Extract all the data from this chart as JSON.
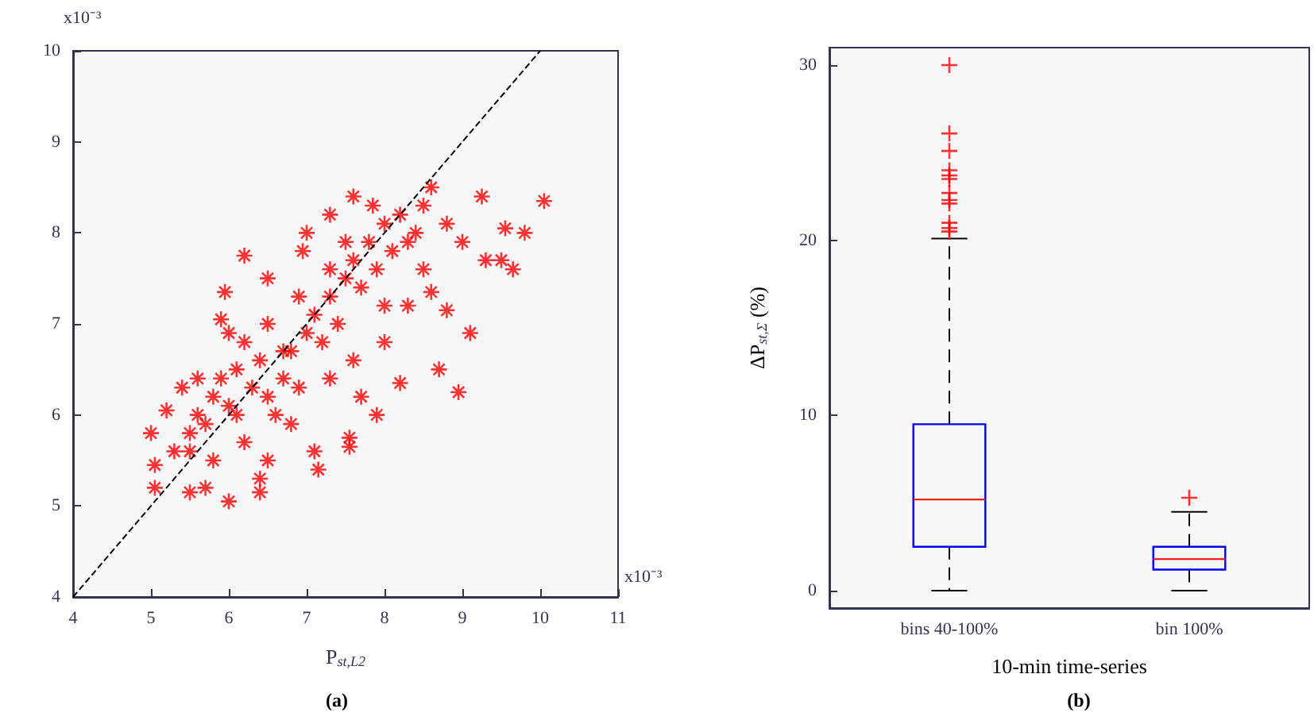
{
  "chart_data": [
    {
      "type": "scatter",
      "title": "(a)",
      "xlabel": "P$_{st,L2}$",
      "annotations": [
        "x10⁻³",
        "x10⁻³"
      ],
      "xlim": [
        4,
        11
      ],
      "xticks": [
        4,
        5,
        6,
        7,
        8,
        9,
        10,
        11
      ],
      "ylim": [
        4,
        10
      ],
      "yticks": [
        4,
        5,
        6,
        7,
        8,
        9,
        10
      ],
      "marker": "cross",
      "series": [
        {
          "color": "#ff0000",
          "x": [
            5.0,
            5.05,
            5.05,
            5.2,
            6.0,
            6.4,
            7.15,
            7.1,
            7.55,
            7.55,
            7.9,
            8.95,
            9.1,
            8.7,
            8.8,
            9.65,
            9.5,
            9.3,
            10.05,
            9.8,
            9.55,
            9.25,
            8.6,
            7.6,
            6.2,
            5.95,
            5.9,
            6.5,
            6.95,
            7.3,
            7.85,
            8.2,
            8.6,
            5.5,
            5.7,
            6.5,
            5.5,
            5.7,
            5.8,
            5.6,
            5.9,
            6.0,
            6.1,
            6.2,
            6.3,
            6.4,
            6.5,
            6.6,
            6.7,
            6.8,
            6.9,
            7.0,
            7.1,
            7.2,
            7.3,
            7.4,
            7.5,
            7.6,
            7.7,
            7.8,
            7.9,
            8.0,
            8.1,
            8.2,
            8.3,
            8.4,
            8.5,
            8.0,
            7.6,
            7.3,
            6.8,
            6.2,
            5.8,
            5.3,
            5.4,
            5.6,
            6.0,
            6.5,
            6.9,
            7.3,
            7.0,
            8.8,
            9.0,
            8.5,
            8.3,
            8.0,
            7.7,
            6.4,
            5.5,
            6.1,
            6.7,
            7.5
          ],
          "values": [
            5.8,
            5.2,
            5.45,
            6.05,
            5.05,
            5.15,
            5.4,
            5.6,
            5.65,
            5.75,
            6.0,
            6.25,
            6.9,
            6.5,
            7.15,
            7.6,
            7.7,
            7.7,
            8.35,
            8.0,
            8.05,
            8.4,
            8.5,
            8.4,
            7.75,
            7.35,
            7.05,
            7.5,
            7.8,
            8.2,
            8.3,
            6.35,
            7.35,
            5.15,
            5.2,
            5.5,
            5.6,
            5.9,
            6.2,
            6.0,
            6.4,
            6.1,
            6.5,
            6.8,
            6.3,
            6.6,
            6.2,
            6.0,
            6.4,
            6.7,
            6.3,
            6.9,
            7.1,
            6.8,
            7.3,
            7.0,
            7.5,
            7.7,
            7.4,
            7.9,
            7.6,
            8.1,
            7.8,
            8.2,
            7.9,
            8.0,
            7.6,
            7.2,
            6.6,
            6.4,
            5.9,
            5.7,
            5.5,
            5.6,
            6.3,
            6.4,
            6.9,
            7.0,
            7.3,
            7.6,
            8.0,
            8.1,
            7.9,
            8.3,
            7.2,
            6.8,
            6.2,
            5.3,
            5.8,
            6.0,
            6.7,
            7.9
          ]
        },
        {
          "type": "line",
          "color": "#000000",
          "line_style": "dashed",
          "marker": "none",
          "x": [
            4,
            10
          ],
          "values": [
            4,
            10
          ]
        }
      ]
    },
    {
      "type": "box",
      "title": "(b)",
      "xlabel": "10-min time-series",
      "ylabel": "ΔP$_{st,Σ}$ (%)",
      "categories": [
        "bins 40-100%",
        "bin 100%"
      ],
      "ylim": [
        -1,
        31
      ],
      "yticks": [
        0,
        10,
        20,
        30
      ],
      "series": [
        {
          "color": "#0000ff",
          "boxes": [
            {
              "low": 0,
              "q1": 2.5,
              "median": 5.2,
              "q3": 9.5,
              "high": 20.1,
              "outliers": [
                30,
                26.1,
                25.1,
                24.0,
                23.7,
                23.5,
                22.7,
                22.3,
                22.1,
                21.0,
                20.7,
                20.5
              ]
            },
            {
              "low": 0,
              "q1": 1.2,
              "median": 1.8,
              "q3": 2.5,
              "high": 4.5,
              "outliers": [
                5.3
              ]
            }
          ]
        }
      ]
    }
  ]
}
